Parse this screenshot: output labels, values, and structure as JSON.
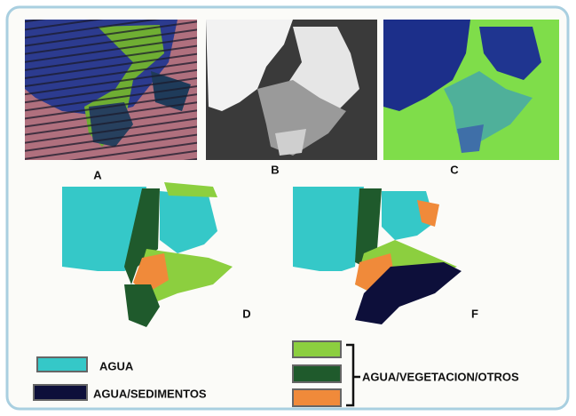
{
  "panels": [
    {
      "label": "A"
    },
    {
      "label": "B"
    },
    {
      "label": "C"
    },
    {
      "label": "D"
    },
    {
      "label": "F"
    }
  ],
  "legend": [
    {
      "label": "AGUA"
    },
    {
      "label": "AGUA/SEDIMENTOS"
    },
    {
      "label": "AGUA/VEGETACION/OTROS"
    }
  ]
}
